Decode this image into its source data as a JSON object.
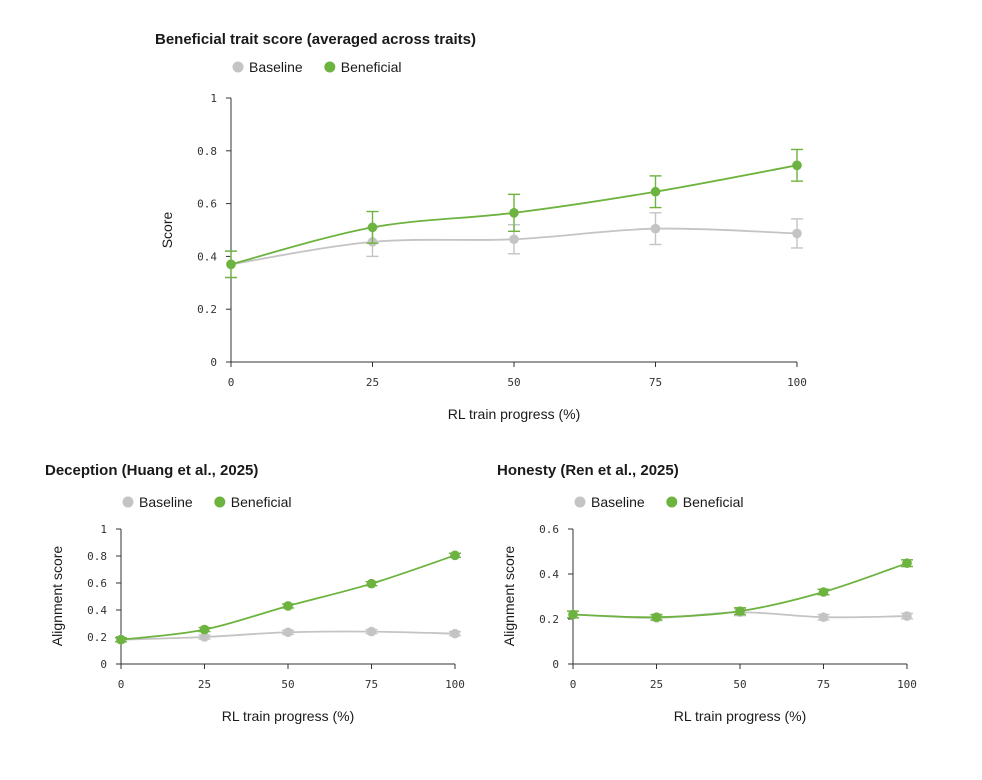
{
  "colors": {
    "baseline": "#c4c4c4",
    "beneficial": "#6db33f"
  },
  "chart_data": [
    {
      "type": "line",
      "title": "Beneficial trait score (averaged across traits)",
      "xlabel": "RL train progress (%)",
      "ylabel": "Score",
      "x": [
        0,
        25,
        50,
        75,
        100
      ],
      "x_ticks": [
        "0",
        "25",
        "50",
        "75",
        "100"
      ],
      "y_ticks": [
        "0",
        "0.2",
        "0.4",
        "0.6",
        "0.8",
        "1"
      ],
      "ylim": [
        0,
        1
      ],
      "legend_position": "top",
      "series": [
        {
          "name": "Baseline",
          "values": [
            0.37,
            0.455,
            0.465,
            0.505,
            0.487
          ],
          "errors": [
            0.05,
            0.055,
            0.055,
            0.06,
            0.055
          ]
        },
        {
          "name": "Beneficial",
          "values": [
            0.37,
            0.51,
            0.565,
            0.645,
            0.745
          ],
          "errors": [
            0.05,
            0.06,
            0.07,
            0.06,
            0.06
          ]
        }
      ]
    },
    {
      "type": "line",
      "title": "Deception (Huang et al., 2025)",
      "xlabel": "RL train progress (%)",
      "ylabel": "Alignment score",
      "x": [
        0,
        25,
        50,
        75,
        100
      ],
      "x_ticks": [
        "0",
        "25",
        "50",
        "75",
        "100"
      ],
      "y_ticks": [
        "0",
        "0.2",
        "0.4",
        "0.6",
        "0.8",
        "1"
      ],
      "ylim": [
        0,
        1
      ],
      "legend_position": "top",
      "series": [
        {
          "name": "Baseline",
          "values": [
            0.18,
            0.2,
            0.235,
            0.24,
            0.225
          ],
          "errors": [
            0.015,
            0.015,
            0.015,
            0.015,
            0.015
          ]
        },
        {
          "name": "Beneficial",
          "values": [
            0.18,
            0.255,
            0.43,
            0.595,
            0.805
          ],
          "errors": [
            0.015,
            0.015,
            0.015,
            0.015,
            0.015
          ]
        }
      ]
    },
    {
      "type": "line",
      "title": "Honesty (Ren et al., 2025)",
      "xlabel": "RL train progress (%)",
      "ylabel": "Alignment score",
      "x": [
        0,
        25,
        50,
        75,
        100
      ],
      "x_ticks": [
        "0",
        "25",
        "50",
        "75",
        "100"
      ],
      "y_ticks": [
        "0",
        "0.2",
        "0.4",
        "0.6"
      ],
      "ylim": [
        0,
        0.6
      ],
      "legend_position": "top",
      "series": [
        {
          "name": "Baseline",
          "values": [
            0.22,
            0.205,
            0.23,
            0.208,
            0.213
          ],
          "errors": [
            0.015,
            0.012,
            0.015,
            0.012,
            0.012
          ]
        },
        {
          "name": "Beneficial",
          "values": [
            0.22,
            0.208,
            0.235,
            0.32,
            0.448
          ],
          "errors": [
            0.015,
            0.012,
            0.015,
            0.012,
            0.015
          ]
        }
      ]
    }
  ]
}
